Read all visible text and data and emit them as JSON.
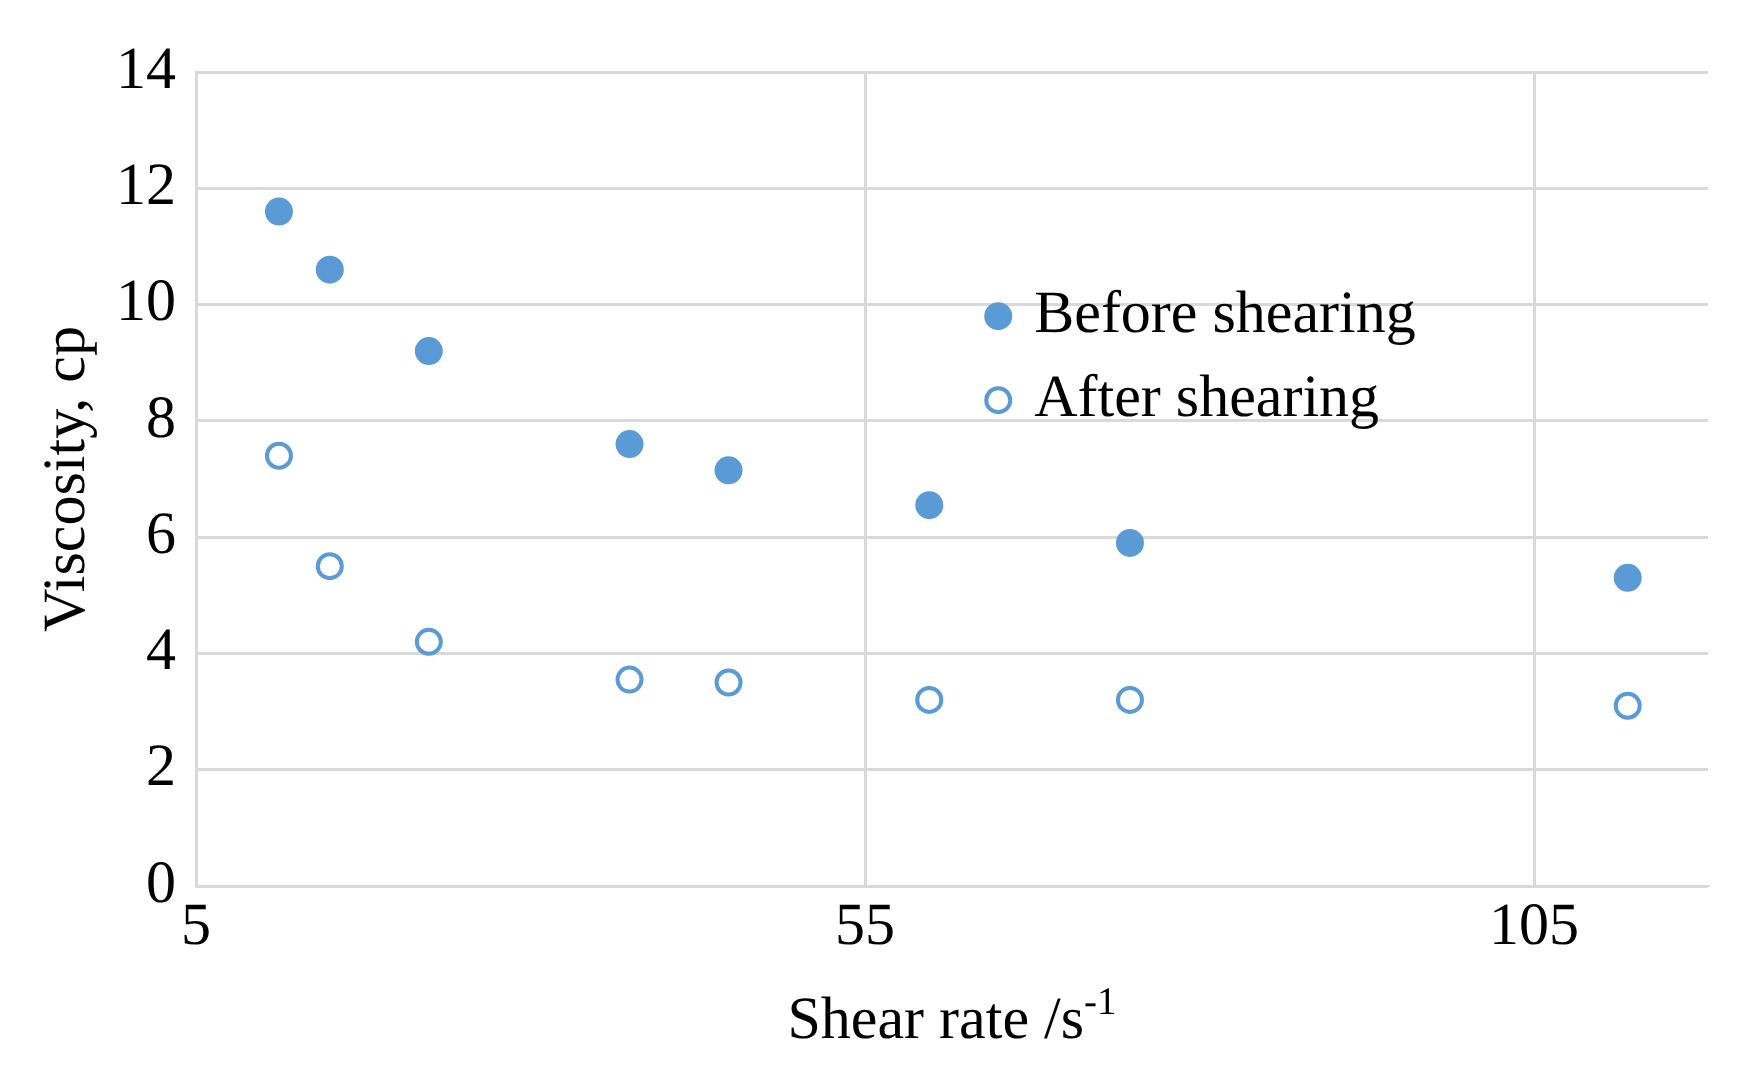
{
  "chart_data": {
    "type": "scatter",
    "xlabel": "Shear rate /s$^{-1}$",
    "ylabel": "Viscosity, cp",
    "xlim": [
      5,
      118
    ],
    "xticks": [
      5,
      55,
      105
    ],
    "ylim": [
      0,
      14
    ],
    "yticks": [
      0,
      2,
      4,
      6,
      8,
      10,
      12,
      14
    ],
    "grid": true,
    "legend": "right",
    "marker": "circle",
    "series": [
      {
        "name": "Before shearing",
        "color": "#5b9bd5",
        "x": [
          11.2,
          15,
          22.4,
          37.4,
          44.8,
          59.8,
          74.8,
          112
        ],
        "values": [
          11.6,
          10.6,
          9.2,
          7.6,
          7.15,
          6.55,
          5.9,
          5.3
        ]
      },
      {
        "name": "After shearing",
        "color": "#5b9bd5",
        "x": [
          11.2,
          15,
          22.4,
          37.4,
          44.8,
          59.8,
          74.8,
          112
        ],
        "values": [
          7.4,
          5.5,
          4.2,
          3.55,
          3.5,
          3.2,
          3.2,
          3.1
        ]
      }
    ]
  }
}
